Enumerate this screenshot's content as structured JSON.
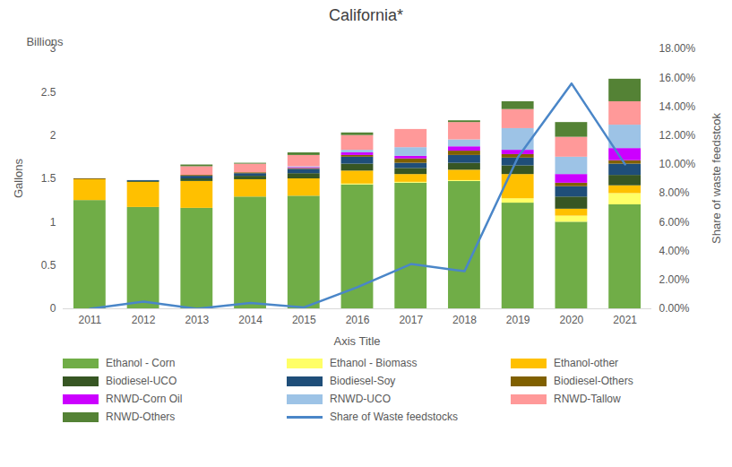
{
  "chart_data": {
    "type": "bar",
    "title": "California*",
    "x_label": "Axis Title",
    "y_label": "Gallons",
    "y2_label": "Share of waste feedstcok",
    "annotations": [
      "Billions"
    ],
    "stacked": true,
    "grid": false,
    "legend": "bottom",
    "categories": [
      "2011",
      "2012",
      "2013",
      "2014",
      "2015",
      "2016",
      "2017",
      "2018",
      "2019",
      "2020",
      "2021"
    ],
    "ylim": [
      0,
      3
    ],
    "yticks": [
      0,
      0.5,
      1,
      1.5,
      2,
      2.5,
      3
    ],
    "y2lim": [
      0,
      18
    ],
    "y2ticks": [
      {
        "value": 0,
        "label": "0.00%"
      },
      {
        "value": 2,
        "label": "2.00%"
      },
      {
        "value": 4,
        "label": "4.00%"
      },
      {
        "value": 6,
        "label": "6.00%"
      },
      {
        "value": 8,
        "label": "8.00%"
      },
      {
        "value": 10,
        "label": "10.00%"
      },
      {
        "value": 12,
        "label": "12.00%"
      },
      {
        "value": 14,
        "label": "14.00%"
      },
      {
        "value": 16,
        "label": "16.00%"
      },
      {
        "value": 18,
        "label": "18.00%"
      }
    ],
    "series": [
      {
        "name": "Ethanol - Corn",
        "color": "#70ad47",
        "values": [
          1.25,
          1.17,
          1.16,
          1.29,
          1.3,
          1.43,
          1.45,
          1.47,
          1.22,
          1.0,
          1.2
        ]
      },
      {
        "name": "Ethanol - Biomass",
        "color": "#ffff66",
        "values": [
          0,
          0,
          0,
          0,
          0,
          0.01,
          0.01,
          0.01,
          0.05,
          0.07,
          0.13
        ]
      },
      {
        "name": "Ethanol-other",
        "color": "#ffc000",
        "values": [
          0.24,
          0.29,
          0.31,
          0.2,
          0.2,
          0.15,
          0.09,
          0.12,
          0.28,
          0.08,
          0.09
        ]
      },
      {
        "name": "Biodiesel-UCO",
        "color": "#375623",
        "values": [
          0,
          0.01,
          0.03,
          0.04,
          0.06,
          0.08,
          0.07,
          0.08,
          0.1,
          0.14,
          0.12
        ]
      },
      {
        "name": "Biodiesel-Soy",
        "color": "#1f4e79",
        "values": [
          0,
          0.01,
          0.03,
          0.03,
          0.05,
          0.08,
          0.06,
          0.09,
          0.09,
          0.12,
          0.13
        ]
      },
      {
        "name": "Biodiesel-Others",
        "color": "#806000",
        "values": [
          0.01,
          0,
          0.01,
          0.01,
          0.01,
          0.02,
          0.05,
          0.05,
          0.04,
          0.04,
          0.04
        ]
      },
      {
        "name": "RNWD-Corn Oil",
        "color": "#cc00ff",
        "values": [
          0,
          0,
          0,
          0,
          0.01,
          0.03,
          0.03,
          0.05,
          0.05,
          0.1,
          0.14
        ]
      },
      {
        "name": "RNWD-UCO",
        "color": "#9dc3e6",
        "values": [
          0,
          0,
          0,
          0,
          0.01,
          0.03,
          0.1,
          0.08,
          0.25,
          0.2,
          0.27
        ]
      },
      {
        "name": "RNWD-Tallow",
        "color": "#ff9999",
        "values": [
          0,
          0,
          0.1,
          0.1,
          0.13,
          0.17,
          0.21,
          0.2,
          0.22,
          0.23,
          0.27
        ]
      },
      {
        "name": "RNWD-Others",
        "color": "#548235",
        "values": [
          0,
          0,
          0.02,
          0.01,
          0.03,
          0.03,
          0,
          0.02,
          0.09,
          0.17,
          0.26
        ]
      },
      {
        "name": "Share of Waste feedstocks",
        "color": "#4a86c8",
        "type": "line",
        "axis": "y2",
        "values": [
          0.0,
          0.5,
          0.0,
          0.4,
          0.1,
          1.5,
          3.1,
          2.6,
          10.5,
          15.6,
          10.0
        ]
      }
    ]
  }
}
